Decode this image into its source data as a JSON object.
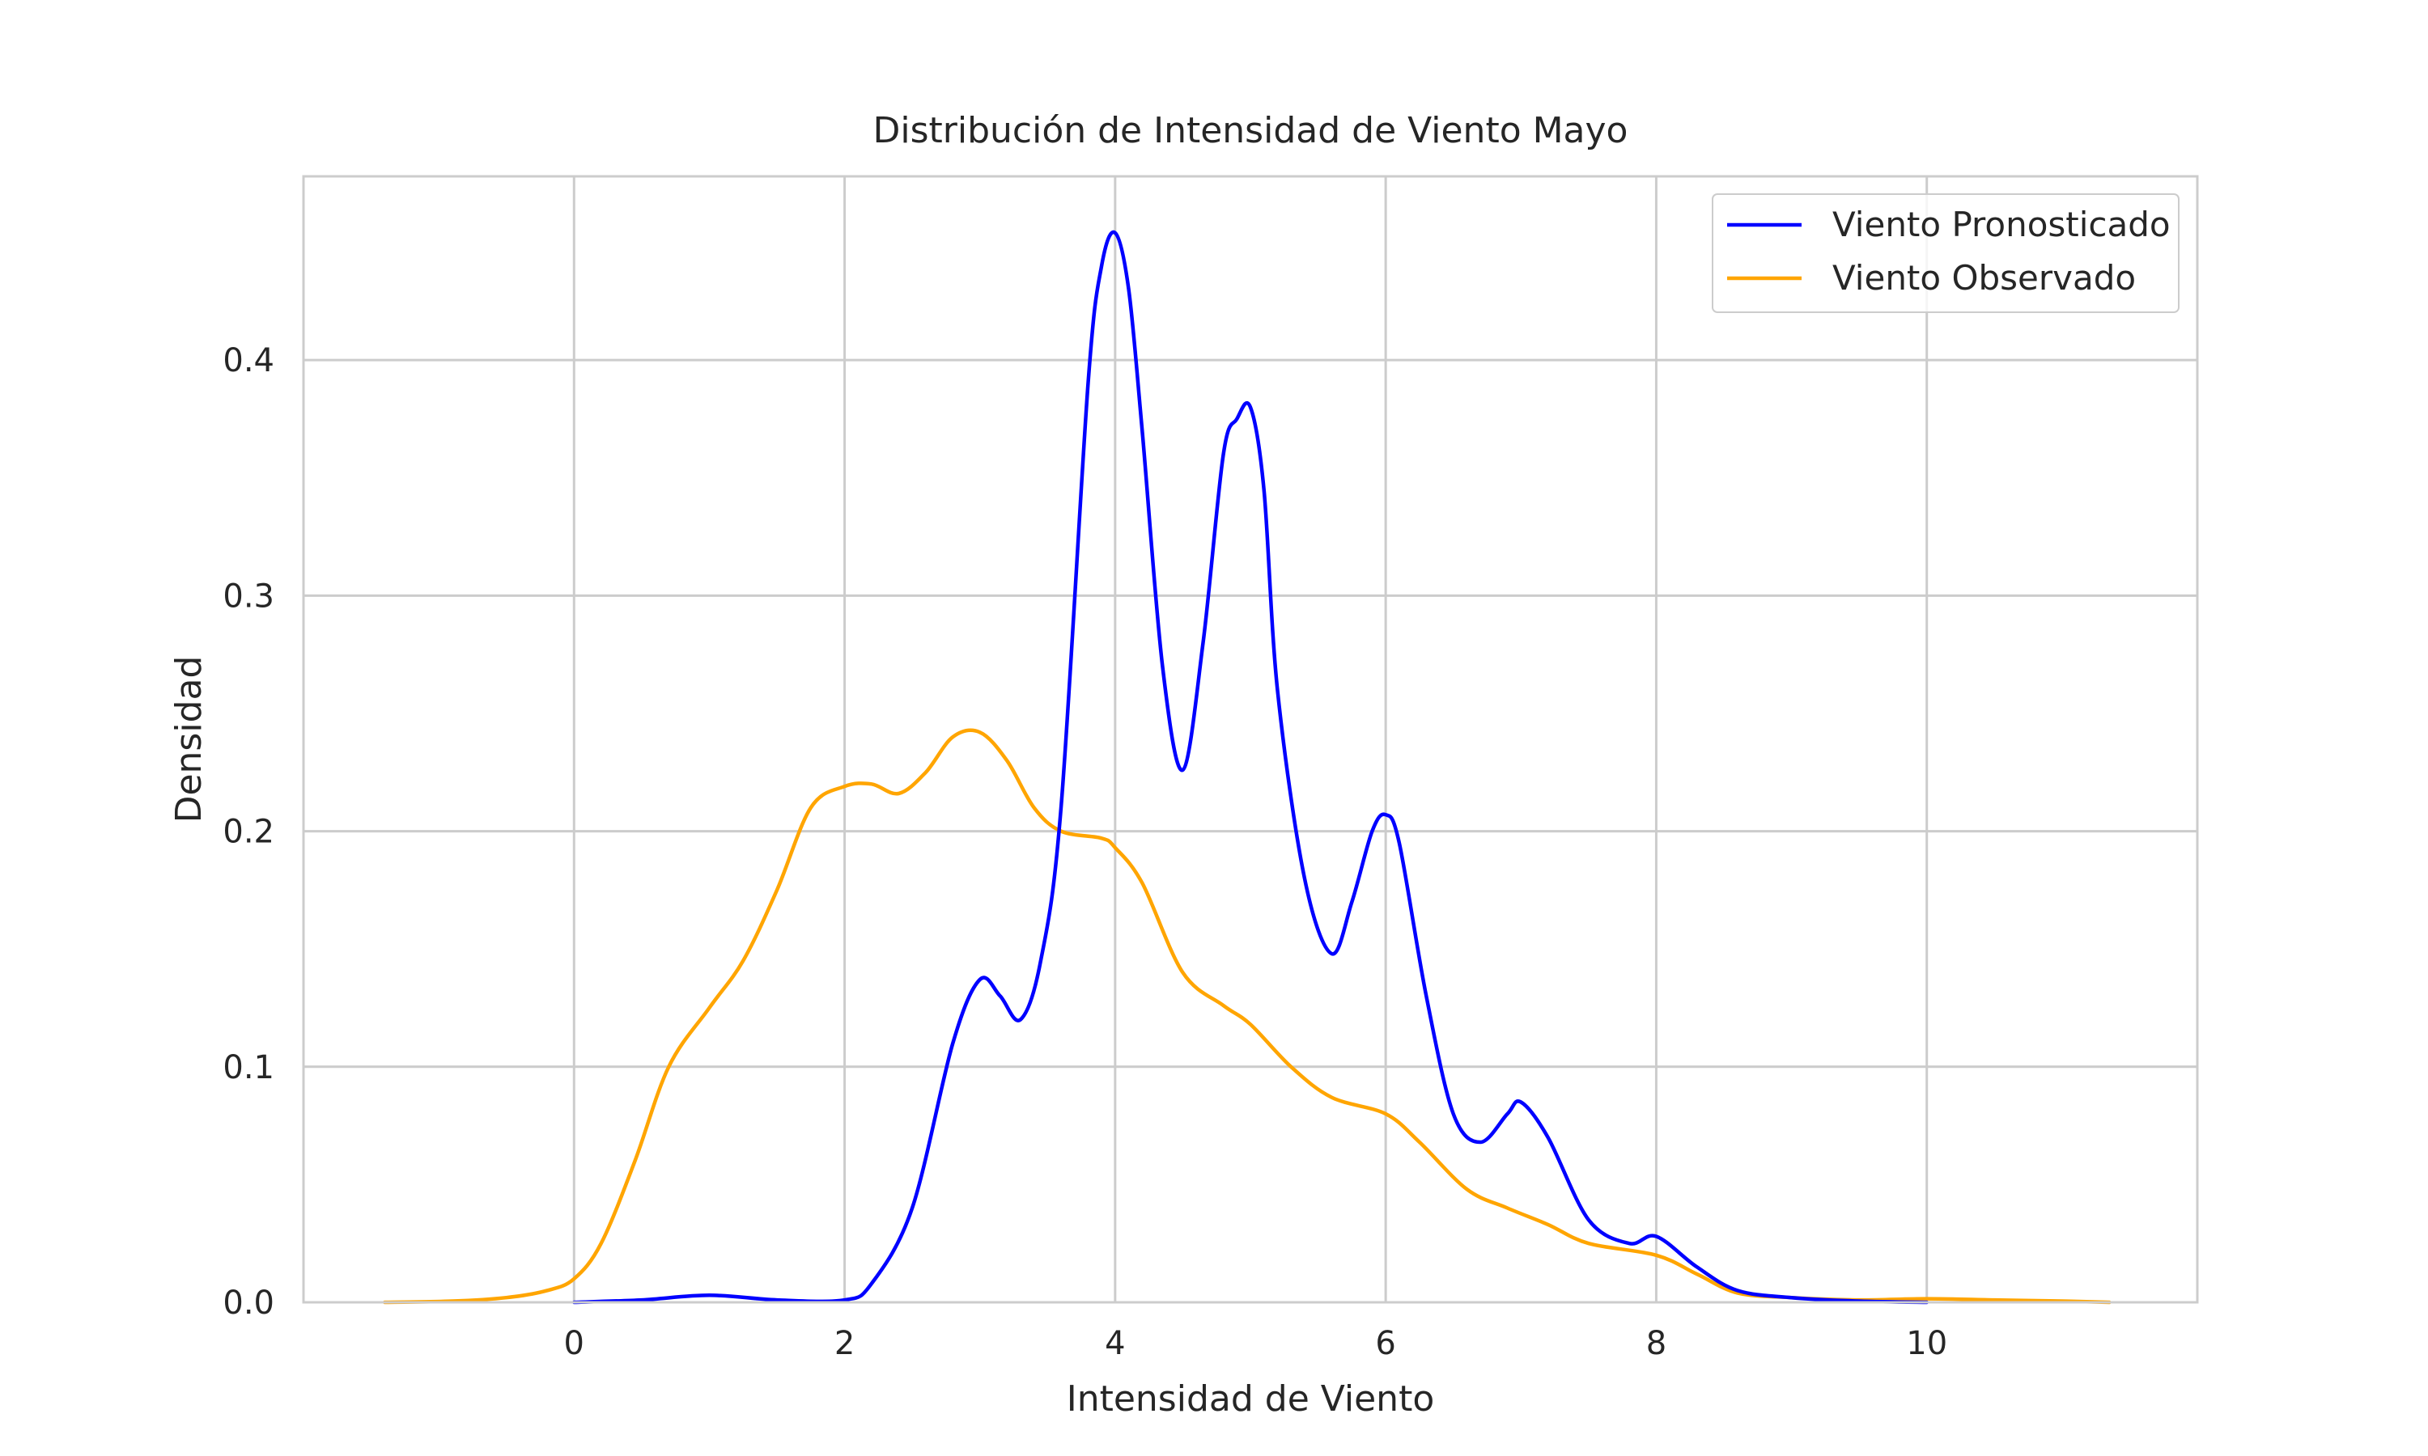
{
  "chart_data": {
    "type": "line",
    "title": "Distribución de Intensidad de Viento Mayo",
    "xlabel": "Intensidad de Viento",
    "ylabel": "Densidad",
    "xlim": [
      -2.0,
      12.0
    ],
    "ylim": [
      0.0,
      0.478
    ],
    "xticks": [
      0,
      2,
      4,
      6,
      8,
      10
    ],
    "xtick_labels": [
      "0",
      "2",
      "4",
      "6",
      "8",
      "10"
    ],
    "yticks": [
      0.0,
      0.1,
      0.2,
      0.3,
      0.4
    ],
    "ytick_labels": [
      "0.0",
      "0.1",
      "0.2",
      "0.3",
      "0.4"
    ],
    "grid": true,
    "legend_position": "top-right",
    "series": [
      {
        "name": "Viento Pronosticado",
        "color": "#0000ff",
        "x": [
          0.0,
          0.5,
          1.0,
          1.5,
          2.0,
          2.2,
          2.5,
          2.8,
          3.0,
          3.15,
          3.3,
          3.45,
          3.6,
          3.8,
          3.9,
          4.0,
          4.1,
          4.2,
          4.35,
          4.5,
          4.65,
          4.8,
          4.9,
          5.0,
          5.1,
          5.2,
          5.4,
          5.6,
          5.75,
          5.9,
          6.0,
          6.1,
          6.3,
          6.5,
          6.7,
          6.9,
          7.0,
          7.2,
          7.5,
          7.8,
          8.0,
          8.3,
          8.6,
          9.0,
          9.5,
          10.0
        ],
        "y": [
          0.0,
          0.001,
          0.003,
          0.001,
          0.001,
          0.008,
          0.04,
          0.11,
          0.137,
          0.13,
          0.12,
          0.145,
          0.21,
          0.39,
          0.44,
          0.454,
          0.43,
          0.37,
          0.27,
          0.226,
          0.28,
          0.36,
          0.375,
          0.38,
          0.345,
          0.26,
          0.18,
          0.148,
          0.17,
          0.2,
          0.207,
          0.195,
          0.13,
          0.08,
          0.068,
          0.08,
          0.085,
          0.07,
          0.035,
          0.025,
          0.028,
          0.015,
          0.005,
          0.002,
          0.0005,
          0.0
        ]
      },
      {
        "name": "Viento Observado",
        "color": "#ffa500",
        "x": [
          -1.4,
          -0.9,
          -0.5,
          -0.2,
          0.0,
          0.2,
          0.45,
          0.7,
          1.0,
          1.25,
          1.5,
          1.75,
          2.0,
          2.2,
          2.4,
          2.6,
          2.8,
          3.0,
          3.2,
          3.4,
          3.6,
          3.9,
          4.0,
          4.2,
          4.5,
          4.8,
          5.0,
          5.3,
          5.6,
          6.0,
          6.25,
          6.6,
          6.9,
          7.2,
          7.5,
          8.0,
          8.3,
          8.6,
          9.0,
          9.5,
          10.0,
          10.5,
          11.0,
          11.35
        ],
        "y": [
          0.0,
          0.0005,
          0.002,
          0.005,
          0.01,
          0.025,
          0.06,
          0.1,
          0.125,
          0.145,
          0.175,
          0.21,
          0.219,
          0.22,
          0.216,
          0.225,
          0.24,
          0.242,
          0.23,
          0.21,
          0.2,
          0.197,
          0.193,
          0.178,
          0.14,
          0.126,
          0.118,
          0.1,
          0.087,
          0.08,
          0.068,
          0.048,
          0.04,
          0.033,
          0.025,
          0.02,
          0.012,
          0.004,
          0.002,
          0.001,
          0.0015,
          0.001,
          0.0005,
          0.0
        ]
      }
    ]
  }
}
